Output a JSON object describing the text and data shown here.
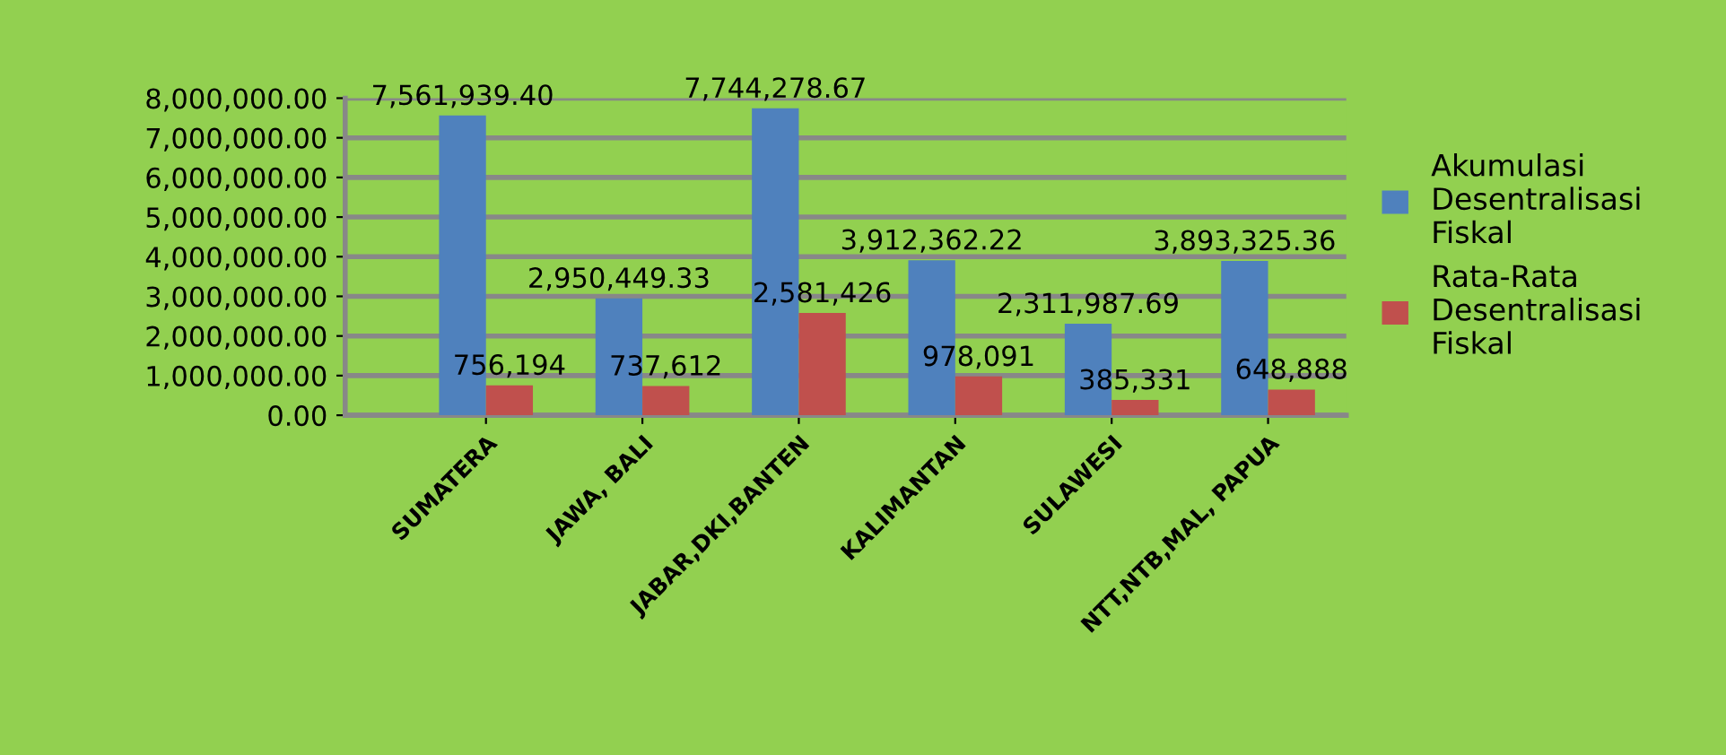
{
  "chart_data": {
    "type": "bar",
    "categories": [
      "SUMATERA",
      "JAWA, BALI",
      "JABAR,DKI,BANTEN",
      "KALIMANTAN",
      "SULAWESI",
      "NTT,NTB,MAL, PAPUA"
    ],
    "series": [
      {
        "name": "Akumulasi Desentralisasi Fiskal",
        "color": "#4f81bd",
        "values": [
          7561939.4,
          2950449.33,
          7744278.67,
          3912362.22,
          2311987.69,
          3893325.36
        ],
        "value_labels": [
          "7,561,939.40",
          "2,950,449.33",
          "7,744,278.67",
          "3,912,362.22",
          "2,311,987.69",
          "3,893,325.36"
        ]
      },
      {
        "name": "Rata-Rata Desentralisasi Fiskal",
        "color": "#c0504d",
        "values": [
          756194,
          737612,
          2581426,
          978091,
          385331,
          648888
        ],
        "value_labels": [
          "756,194",
          "737,612",
          "2,581,426",
          "978,091",
          "385,331",
          "648,888"
        ]
      }
    ],
    "ylim": [
      0,
      8000000
    ],
    "yticks": [
      {
        "value": 0,
        "label": "0.00"
      },
      {
        "value": 1000000,
        "label": "1,000,000.00"
      },
      {
        "value": 2000000,
        "label": "2,000,000.00"
      },
      {
        "value": 3000000,
        "label": "3,000,000.00"
      },
      {
        "value": 4000000,
        "label": "4,000,000.00"
      },
      {
        "value": 5000000,
        "label": "5,000,000.00"
      },
      {
        "value": 6000000,
        "label": "6,000,000.00"
      },
      {
        "value": 7000000,
        "label": "7,000,000.00"
      },
      {
        "value": 8000000,
        "label": "8,000,000.00"
      }
    ],
    "grid": "y",
    "legend": "right"
  }
}
